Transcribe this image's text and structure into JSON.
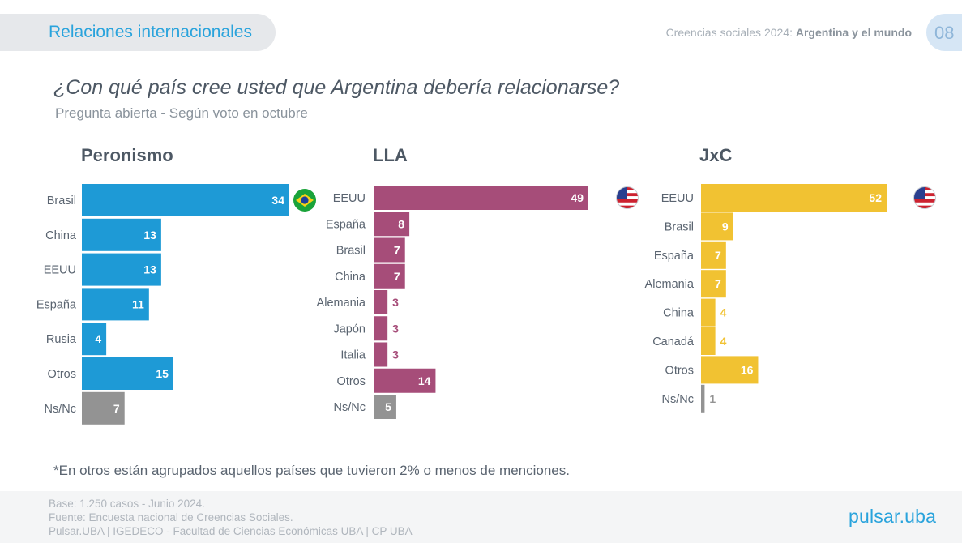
{
  "header": {
    "section": "Relaciones internacionales",
    "report_prefix": "Creencias sociales 2024: ",
    "report_bold": "Argentina y el mundo",
    "page": "08"
  },
  "question": "¿Con qué país cree usted que Argentina debería relacionarse?",
  "subtitle": "Pregunta abierta - Según voto en octubre",
  "chart_data": [
    {
      "type": "bar",
      "orientation": "horizontal",
      "title": "Peronismo",
      "categories": [
        "Brasil",
        "China",
        "EEUU",
        "España",
        "Rusia",
        "Otros",
        "Ns/Nc"
      ],
      "values": [
        34,
        13,
        13,
        11,
        4,
        15,
        7
      ],
      "color": "#1e9ad6",
      "nsnc_color": "#939393",
      "flag": "brazil-flag"
    },
    {
      "type": "bar",
      "orientation": "horizontal",
      "title": "LLA",
      "categories": [
        "EEUU",
        "España",
        "Brasil",
        "China",
        "Alemania",
        "Japón",
        "Italia",
        "Otros",
        "Ns/Nc"
      ],
      "values": [
        49,
        8,
        7,
        7,
        3,
        3,
        3,
        14,
        5
      ],
      "color": "#a64d79",
      "nsnc_color": "#939393",
      "flag": "usa-flag"
    },
    {
      "type": "bar",
      "orientation": "horizontal",
      "title": "JxC",
      "categories": [
        "EEUU",
        "Brasil",
        "España",
        "Alemania",
        "China",
        "Canadá",
        "Otros",
        "Ns/Nc"
      ],
      "values": [
        52,
        9,
        7,
        7,
        4,
        4,
        16,
        1
      ],
      "color": "#f1c232",
      "nsnc_color": "#939393",
      "flag": "usa-flag"
    }
  ],
  "footnote": "*En otros están agrupados aquellos países que tuvieron 2% o menos de menciones.",
  "footer": {
    "lines": [
      "Base: 1.250 casos - Junio 2024.",
      "Fuente: Encuesta nacional de Creencias Sociales.",
      "Pulsar.UBA | IGEDECO - Facultad de Ciencias Económicas UBA | CP UBA"
    ],
    "logo": "pulsar.uba"
  }
}
